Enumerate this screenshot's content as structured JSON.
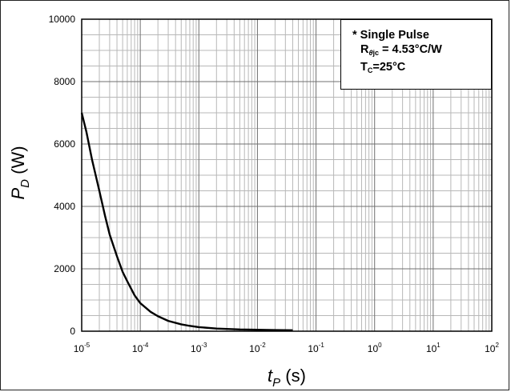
{
  "chart_data": {
    "type": "line",
    "xscale": "log",
    "xlim": [
      1e-05,
      100
    ],
    "ylim": [
      0,
      10000
    ],
    "grid": true,
    "xlabel": {
      "var": "t",
      "sub": "P",
      "unit": " (s)"
    },
    "ylabel": {
      "var": "P",
      "sub": "D",
      "unit": " (W)"
    },
    "y_ticks": [
      {
        "value": 0,
        "label": "0"
      },
      {
        "value": 2000,
        "label": "2000"
      },
      {
        "value": 4000,
        "label": "4000"
      },
      {
        "value": 6000,
        "label": "6000"
      },
      {
        "value": 8000,
        "label": "8000"
      },
      {
        "value": 10000,
        "label": "10000"
      }
    ],
    "x_ticks": [
      {
        "value": 1e-05,
        "base": "10",
        "exp": "-5"
      },
      {
        "value": 0.0001,
        "base": "10",
        "exp": "-4"
      },
      {
        "value": 0.001,
        "base": "10",
        "exp": "-3"
      },
      {
        "value": 0.01,
        "base": "10",
        "exp": "-2"
      },
      {
        "value": 0.1,
        "base": "10",
        "exp": "-1"
      },
      {
        "value": 1,
        "base": "10",
        "exp": "0"
      },
      {
        "value": 10,
        "base": "10",
        "exp": "1"
      },
      {
        "value": 100,
        "base": "10",
        "exp": "2"
      }
    ],
    "series": [
      {
        "color": "#000000",
        "points": [
          [
            1e-05,
            7000
          ],
          [
            1.2e-05,
            6400
          ],
          [
            1.5e-05,
            5500
          ],
          [
            2e-05,
            4500
          ],
          [
            2.5e-05,
            3700
          ],
          [
            3e-05,
            3100
          ],
          [
            4e-05,
            2400
          ],
          [
            5e-05,
            1900
          ],
          [
            6e-05,
            1600
          ],
          [
            8e-05,
            1150
          ],
          [
            0.0001,
            900
          ],
          [
            0.00015,
            620
          ],
          [
            0.0002,
            480
          ],
          [
            0.0003,
            330
          ],
          [
            0.0005,
            220
          ],
          [
            0.0007,
            170
          ],
          [
            0.001,
            130
          ],
          [
            0.002,
            85
          ],
          [
            0.005,
            55
          ],
          [
            0.01,
            45
          ],
          [
            0.02,
            35
          ],
          [
            0.04,
            30
          ]
        ]
      }
    ],
    "annotation": {
      "line1": "* Single Pulse",
      "r_prefix": "R",
      "r_sub_pre": "θ",
      "r_sub_post": "jc",
      "r_value": " = 4.53°C/W",
      "t_prefix": "T",
      "t_sub": "C",
      "t_value": "=25°C"
    }
  }
}
